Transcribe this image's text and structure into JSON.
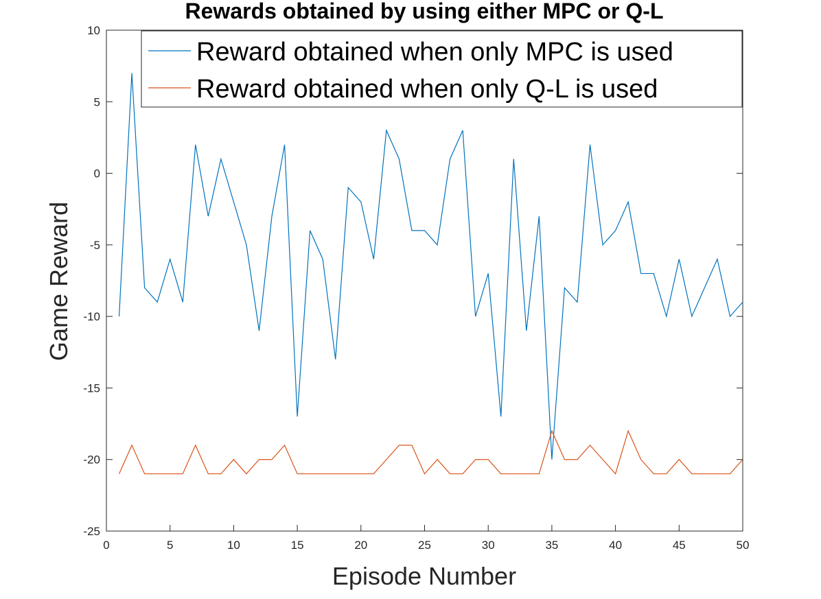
{
  "chart_data": {
    "type": "line",
    "title": "Rewards obtained by using either MPC or Q-L",
    "xlabel": "Episode Number",
    "ylabel": "Game Reward",
    "xlim": [
      0,
      50
    ],
    "ylim": [
      -25,
      10
    ],
    "xticks": [
      0,
      5,
      10,
      15,
      20,
      25,
      30,
      35,
      40,
      45,
      50
    ],
    "yticks": [
      -25,
      -20,
      -15,
      -10,
      -5,
      0,
      5,
      10
    ],
    "grid": false,
    "legend_position": "top-right",
    "x": [
      1,
      2,
      3,
      4,
      5,
      6,
      7,
      8,
      9,
      10,
      11,
      12,
      13,
      14,
      15,
      16,
      17,
      18,
      19,
      20,
      21,
      22,
      23,
      24,
      25,
      26,
      27,
      28,
      29,
      30,
      31,
      32,
      33,
      34,
      35,
      36,
      37,
      38,
      39,
      40,
      41,
      42,
      43,
      44,
      45,
      46,
      47,
      48,
      49,
      50
    ],
    "series": [
      {
        "name": "Reward obtained when only MPC is used",
        "color": "#0072BD",
        "values": [
          -10,
          7,
          -8,
          -9,
          -6,
          -9,
          2,
          -3,
          1,
          -2,
          -5,
          -11,
          -3,
          2,
          -17,
          -4,
          -6,
          -13,
          -1,
          -2,
          -6,
          3,
          1,
          -4,
          -4,
          -5,
          1,
          3,
          -10,
          -7,
          -17,
          1,
          -11,
          -3,
          -20,
          -8,
          -9,
          2,
          -5,
          -4,
          -2,
          -7,
          -7,
          -10,
          -6,
          -10,
          -8,
          -6,
          -10,
          -9
        ]
      },
      {
        "name": "Reward obtained when only Q-L is used",
        "color": "#D95319",
        "values": [
          -21,
          -19,
          -21,
          -21,
          -21,
          -21,
          -19,
          -21,
          -21,
          -20,
          -21,
          -20,
          -20,
          -19,
          -21,
          -21,
          -21,
          -21,
          -21,
          -21,
          -21,
          -20,
          -19,
          -19,
          -21,
          -20,
          -21,
          -21,
          -20,
          -20,
          -21,
          -21,
          -21,
          -21,
          -18,
          -20,
          -20,
          -19,
          -20,
          -21,
          -18,
          -20,
          -21,
          -21,
          -20,
          -21,
          -21,
          -21,
          -21,
          -20
        ]
      }
    ]
  }
}
